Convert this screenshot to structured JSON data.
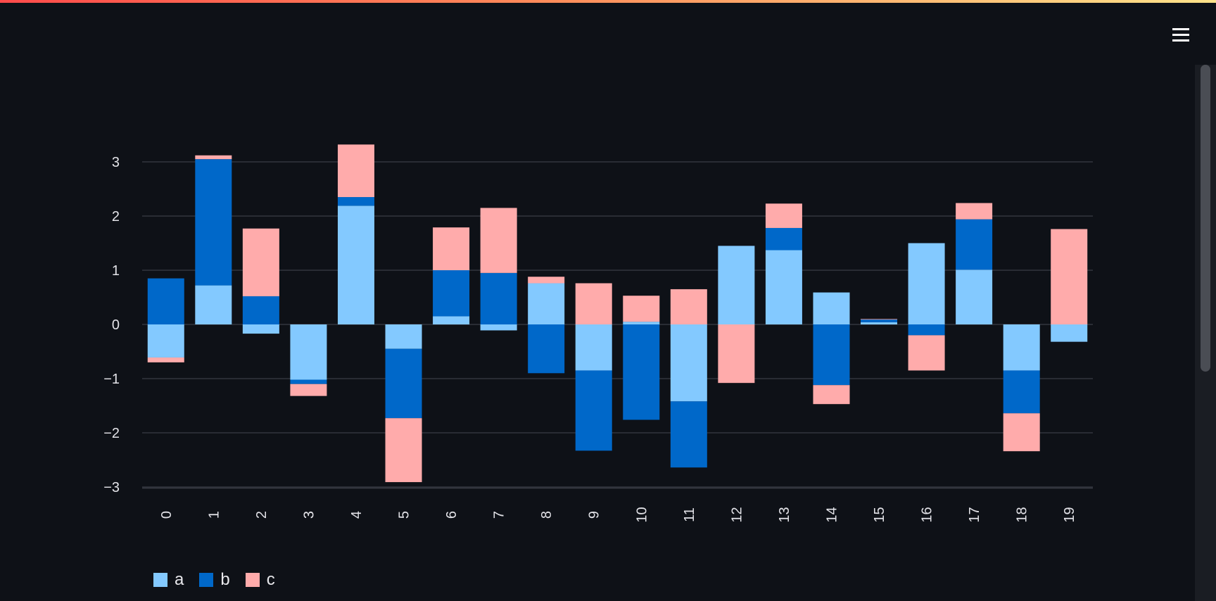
{
  "theme": {
    "background": "#0e1117",
    "grid": "#3a3d45",
    "text": "#e3e3e8"
  },
  "menu": {
    "icon": "hamburger-menu-icon"
  },
  "chart_data": {
    "type": "bar",
    "stacked": true,
    "categories": [
      "0",
      "1",
      "2",
      "3",
      "4",
      "5",
      "6",
      "7",
      "8",
      "9",
      "10",
      "11",
      "12",
      "13",
      "14",
      "15",
      "16",
      "17",
      "18",
      "19"
    ],
    "yticks": [
      "3",
      "2",
      "1",
      "0",
      "−1",
      "−2",
      "−3"
    ],
    "ytick_values": [
      3,
      2,
      1,
      0,
      -1,
      -2,
      -3
    ],
    "ylim": [
      -3.02,
      3.35
    ],
    "grid": true,
    "legend_position": "bottom-left",
    "series": [
      {
        "name": "a",
        "color": "#83c9ff",
        "values": [
          -0.61,
          0.72,
          -0.17,
          -1.02,
          2.19,
          -0.45,
          0.15,
          -0.11,
          0.76,
          -0.85,
          0.05,
          -1.42,
          1.45,
          1.37,
          0.59,
          0.04,
          1.5,
          1.01,
          -0.85,
          -0.32
        ]
      },
      {
        "name": "b",
        "color": "#0068c9",
        "values": [
          0.85,
          2.33,
          0.52,
          -0.08,
          0.16,
          -1.28,
          0.85,
          0.95,
          -0.9,
          -1.48,
          -1.76,
          -1.22,
          0.0,
          0.41,
          -1.12,
          0.05,
          -0.2,
          0.93,
          -0.79,
          0.0
        ]
      },
      {
        "name": "c",
        "color": "#ffabab",
        "values": [
          -0.09,
          0.07,
          1.25,
          -0.22,
          0.97,
          -1.18,
          0.79,
          1.2,
          0.12,
          0.76,
          0.48,
          0.65,
          -1.08,
          0.45,
          -0.35,
          0.01,
          -0.65,
          0.3,
          -0.7,
          1.76
        ]
      }
    ]
  }
}
